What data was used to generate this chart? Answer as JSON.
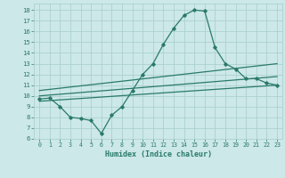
{
  "xlabel": "Humidex (Indice chaleur)",
  "xlim": [
    -0.5,
    23.5
  ],
  "ylim": [
    6,
    18.6
  ],
  "yticks": [
    6,
    7,
    8,
    9,
    10,
    11,
    12,
    13,
    14,
    15,
    16,
    17,
    18
  ],
  "xticks": [
    0,
    1,
    2,
    3,
    4,
    5,
    6,
    7,
    8,
    9,
    10,
    11,
    12,
    13,
    14,
    15,
    16,
    17,
    18,
    19,
    20,
    21,
    22,
    23
  ],
  "bg_color": "#cce8e8",
  "line_color": "#2a7a6a",
  "grid_color": "#a8cccc",
  "hourly_x": [
    0,
    1,
    2,
    3,
    4,
    5,
    6,
    7,
    8,
    9,
    10,
    11,
    12,
    13,
    14,
    15,
    16,
    17,
    18,
    19,
    20,
    21,
    22,
    23
  ],
  "hourly_y": [
    9.7,
    9.8,
    9.0,
    8.0,
    7.9,
    7.7,
    6.5,
    8.2,
    9.0,
    10.5,
    12.0,
    13.0,
    14.8,
    16.3,
    17.5,
    18.0,
    17.9,
    14.5,
    13.0,
    12.5,
    11.6,
    11.6,
    11.2,
    11.0
  ],
  "upper_line_x": [
    0,
    23
  ],
  "upper_line_y": [
    10.5,
    13.0
  ],
  "middle_line_x": [
    0,
    23
  ],
  "middle_line_y": [
    10.0,
    11.8
  ],
  "lower_line_x": [
    0,
    23
  ],
  "lower_line_y": [
    9.5,
    11.0
  ]
}
